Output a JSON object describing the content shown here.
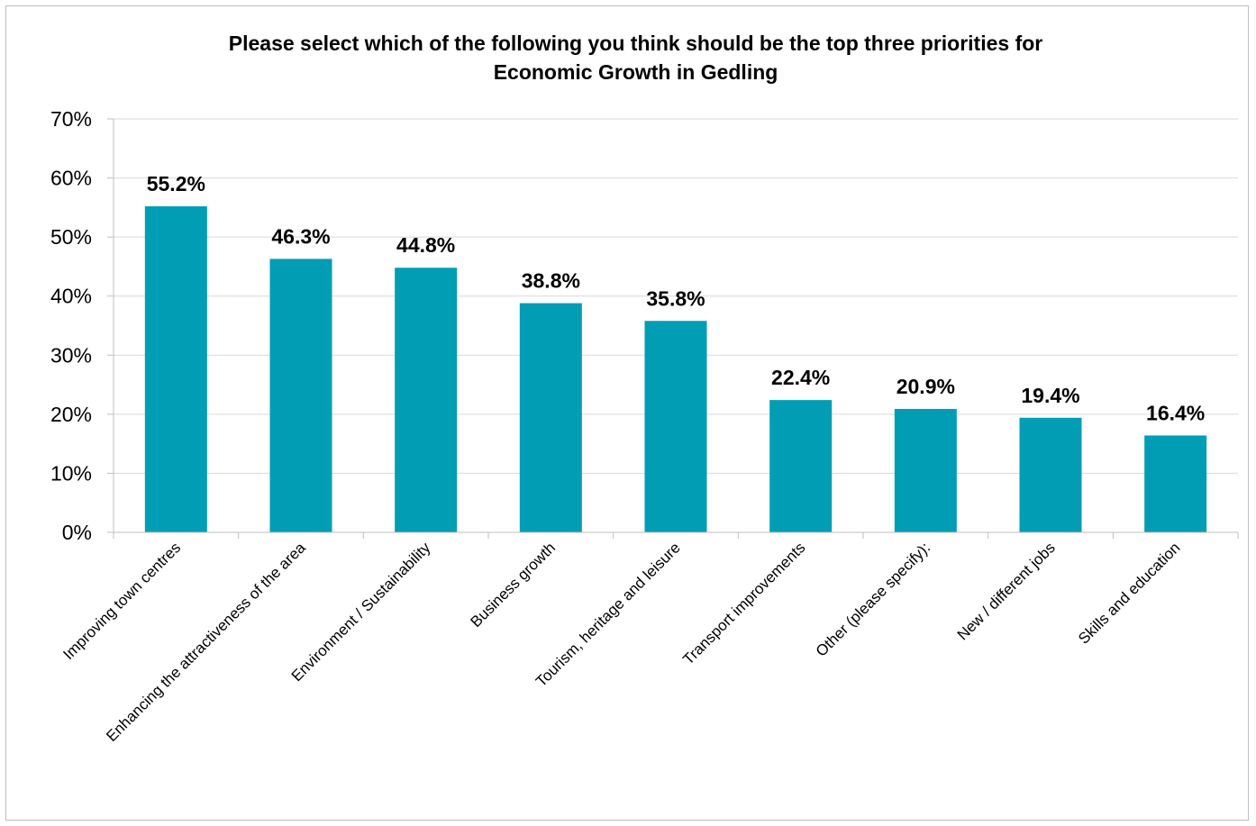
{
  "chart_data": {
    "type": "bar",
    "title_line1": "Please select which of the following you think should be the top three priorities for",
    "title_line2": "Economic Growth in Gedling",
    "categories": [
      "Improving town centres",
      "Enhancing the attractiveness of the area",
      "Environment / Sustainability",
      "Business growth",
      "Tourism, heritage and leisure",
      "Transport improvements",
      "Other (please specify):",
      "New / different jobs",
      "Skills and education"
    ],
    "values": [
      55.2,
      46.3,
      44.8,
      38.8,
      35.8,
      22.4,
      20.9,
      19.4,
      16.4
    ],
    "data_labels": [
      "55.2%",
      "46.3%",
      "44.8%",
      "38.8%",
      "35.8%",
      "22.4%",
      "20.9%",
      "19.4%",
      "16.4%"
    ],
    "ylim": [
      0,
      70
    ],
    "yticks": [
      0,
      10,
      20,
      30,
      40,
      50,
      60,
      70
    ],
    "ytick_labels": [
      "0%",
      "10%",
      "20%",
      "30%",
      "40%",
      "50%",
      "60%",
      "70%"
    ],
    "grid": true,
    "colors": {
      "bar": "#009db4",
      "grid": "#d9d9d9",
      "axis": "#bfbfbf"
    }
  }
}
